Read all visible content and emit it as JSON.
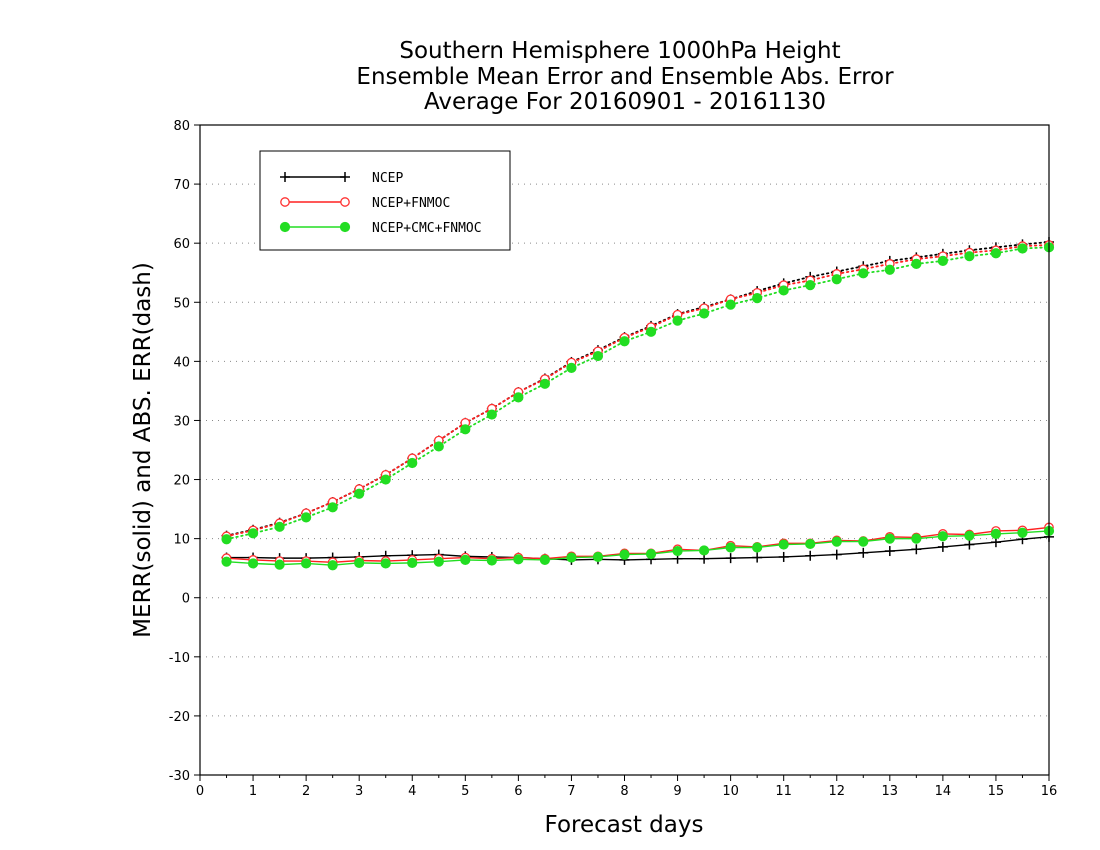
{
  "chart_data": {
    "type": "line",
    "title": [
      "Southern Hemisphere 1000hPa Height",
      "Ensemble Mean Error and Ensemble Abs. Error",
      "Average For 20160901 - 20161130"
    ],
    "xlabel": "Forecast days",
    "ylabel": "MERR(solid) and ABS. ERR(dash)",
    "xlim": [
      0,
      16
    ],
    "ylim": [
      -30,
      80
    ],
    "xticks": [
      0,
      1,
      2,
      3,
      4,
      5,
      6,
      7,
      8,
      9,
      10,
      11,
      12,
      13,
      14,
      15,
      16
    ],
    "yticks": [
      -30,
      -20,
      -10,
      0,
      10,
      20,
      30,
      40,
      50,
      60,
      70,
      80
    ],
    "grid": "dotted horizontal",
    "legend_position": "top-left",
    "x": [
      0.5,
      1,
      1.5,
      2,
      2.5,
      3,
      3.5,
      4,
      4.5,
      5,
      5.5,
      6,
      6.5,
      7,
      7.5,
      8,
      8.5,
      9,
      9.5,
      10,
      10.5,
      11,
      11.5,
      12,
      12.5,
      13,
      13.5,
      14,
      14.5,
      15,
      15.5,
      16
    ],
    "series": [
      {
        "name": "NCEP",
        "color": "#000000",
        "marker": "plus",
        "mean_error": [
          6.8,
          6.8,
          6.7,
          6.7,
          6.8,
          6.9,
          7.1,
          7.2,
          7.3,
          7.0,
          6.9,
          6.8,
          6.6,
          6.4,
          6.5,
          6.4,
          6.5,
          6.6,
          6.6,
          6.7,
          6.8,
          6.9,
          7.1,
          7.3,
          7.6,
          7.9,
          8.2,
          8.6,
          9.0,
          9.4,
          9.9,
          10.3
        ],
        "abs_error": [
          10.5,
          11.5,
          12.7,
          14.3,
          16.2,
          18.4,
          20.8,
          23.6,
          26.6,
          29.6,
          32.0,
          34.8,
          37.1,
          39.9,
          41.9,
          44.1,
          46.0,
          48.0,
          49.2,
          50.5,
          51.9,
          53.2,
          54.3,
          55.2,
          56.1,
          57.0,
          57.6,
          58.2,
          58.8,
          59.3,
          59.8,
          60.2
        ]
      },
      {
        "name": "NCEP+FNMOC",
        "color": "#ff3030",
        "marker": "open-circle",
        "mean_error": [
          6.7,
          6.4,
          6.2,
          6.2,
          6.0,
          6.3,
          6.2,
          6.4,
          6.6,
          6.8,
          6.6,
          6.8,
          6.6,
          7.0,
          7.0,
          7.5,
          7.5,
          8.2,
          8.0,
          8.8,
          8.6,
          9.2,
          9.2,
          9.7,
          9.6,
          10.3,
          10.2,
          10.8,
          10.7,
          11.3,
          11.4,
          11.9
        ],
        "abs_error": [
          10.4,
          11.4,
          12.6,
          14.3,
          16.2,
          18.4,
          20.8,
          23.6,
          26.6,
          29.6,
          32.0,
          34.8,
          37.0,
          39.8,
          41.7,
          44.0,
          45.8,
          47.9,
          49.0,
          50.5,
          51.6,
          52.9,
          53.7,
          54.8,
          55.6,
          56.5,
          57.3,
          57.8,
          58.4,
          58.8,
          59.5,
          59.7
        ]
      },
      {
        "name": "NCEP+CMC+FNMOC",
        "color": "#22dd22",
        "marker": "filled-circle",
        "mean_error": [
          6.1,
          5.8,
          5.6,
          5.8,
          5.5,
          5.9,
          5.8,
          5.9,
          6.1,
          6.4,
          6.3,
          6.5,
          6.4,
          6.8,
          6.9,
          7.3,
          7.4,
          7.9,
          8.0,
          8.5,
          8.5,
          9.0,
          9.1,
          9.5,
          9.5,
          10.0,
          10.0,
          10.4,
          10.5,
          10.8,
          11.0,
          11.3
        ],
        "abs_error": [
          9.9,
          10.9,
          12.0,
          13.6,
          15.3,
          17.6,
          20.0,
          22.8,
          25.6,
          28.5,
          31.0,
          33.9,
          36.2,
          38.9,
          40.9,
          43.4,
          45.0,
          46.9,
          48.1,
          49.6,
          50.7,
          52.0,
          52.9,
          53.9,
          54.9,
          55.5,
          56.5,
          57.0,
          57.8,
          58.3,
          59.1,
          59.3
        ]
      }
    ]
  }
}
